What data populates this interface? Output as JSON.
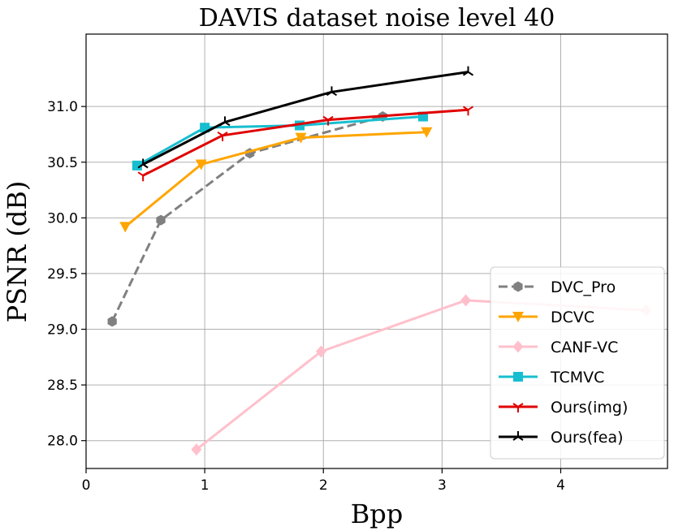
{
  "chart_data": {
    "type": "line",
    "title": "DAVIS dataset noise level 40",
    "xlabel": "Bpp",
    "ylabel": "PSNR (dB)",
    "xlim": [
      0,
      4.9
    ],
    "ylim": [
      27.75,
      31.65
    ],
    "xticks": [
      0,
      1,
      2,
      3,
      4
    ],
    "yticks": [
      28.0,
      28.5,
      29.0,
      29.5,
      30.0,
      30.5,
      31.0
    ],
    "grid": true,
    "legend_position": "lower-right",
    "series": [
      {
        "name": "DVC_Pro",
        "color": "#808080",
        "dash": "dashed",
        "marker": "hexagon",
        "x": [
          0.22,
          0.63,
          1.38,
          2.5
        ],
        "y": [
          29.07,
          29.98,
          30.58,
          30.91
        ]
      },
      {
        "name": "DCVC",
        "color": "#FFA500",
        "dash": "solid",
        "marker": "triangle-down",
        "x": [
          0.33,
          0.97,
          1.81,
          2.87
        ],
        "y": [
          29.92,
          30.48,
          30.72,
          30.77
        ]
      },
      {
        "name": "CANF-VC",
        "color": "#FFC0CB",
        "dash": "solid",
        "marker": "diamond",
        "x": [
          0.93,
          1.98,
          3.2,
          4.72
        ],
        "y": [
          27.92,
          28.8,
          29.26,
          29.17
        ]
      },
      {
        "name": "TCMVC",
        "color": "#17BECF",
        "dash": "solid",
        "marker": "square",
        "x": [
          0.43,
          1.0,
          1.8,
          2.84
        ],
        "y": [
          30.47,
          30.81,
          30.83,
          30.91
        ]
      },
      {
        "name": "Ours(img)",
        "color": "#E00000",
        "dash": "solid",
        "marker": "tri-down",
        "x": [
          0.48,
          1.15,
          2.04,
          3.22
        ],
        "y": [
          30.38,
          30.74,
          30.88,
          30.97
        ]
      },
      {
        "name": "Ours(fea)",
        "color": "#000000",
        "dash": "solid",
        "marker": "tri-up",
        "x": [
          0.48,
          1.17,
          2.07,
          3.22
        ],
        "y": [
          30.48,
          30.86,
          31.13,
          31.31
        ]
      }
    ]
  }
}
